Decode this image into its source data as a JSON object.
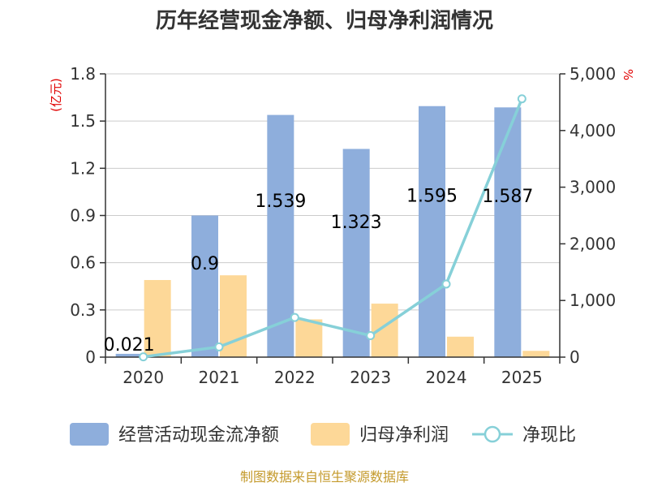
{
  "chart_data": {
    "type": "bar",
    "title": "历年经营现金净额、归母净利润情况",
    "categories": [
      "2020",
      "2021",
      "2022",
      "2023",
      "2024",
      "2025"
    ],
    "y_left": {
      "unit": "(亿元)",
      "range": [
        0,
        1.8
      ],
      "ticks": [
        "0",
        "0.3",
        "0.6",
        "0.9",
        "1.2",
        "1.5",
        "1.8"
      ]
    },
    "y_right": {
      "unit": "%",
      "range": [
        0,
        5000
      ],
      "ticks": [
        "0",
        "1,000",
        "2,000",
        "3,000",
        "4,000",
        "5,000"
      ]
    },
    "series": [
      {
        "name": "经营活动现金流净额",
        "kind": "bar",
        "axis": "left",
        "color": "#8eaedc",
        "values": [
          0.021,
          0.9,
          1.539,
          1.323,
          1.595,
          1.587
        ],
        "labels": [
          "0.021",
          "0.9",
          "1.539",
          "1.323",
          "1.595",
          "1.587"
        ]
      },
      {
        "name": "归母净利润",
        "kind": "bar",
        "axis": "left",
        "color": "#fdd898",
        "values": [
          0.49,
          0.52,
          0.24,
          0.34,
          0.13,
          0.04
        ]
      },
      {
        "name": "净现比",
        "kind": "line",
        "axis": "right",
        "color": "#86d0d8",
        "values": [
          5,
          180,
          700,
          380,
          1290,
          4560
        ]
      }
    ],
    "grid": true,
    "legend": "bottom"
  },
  "source_text": "制图数据来自恒生聚源数据库"
}
